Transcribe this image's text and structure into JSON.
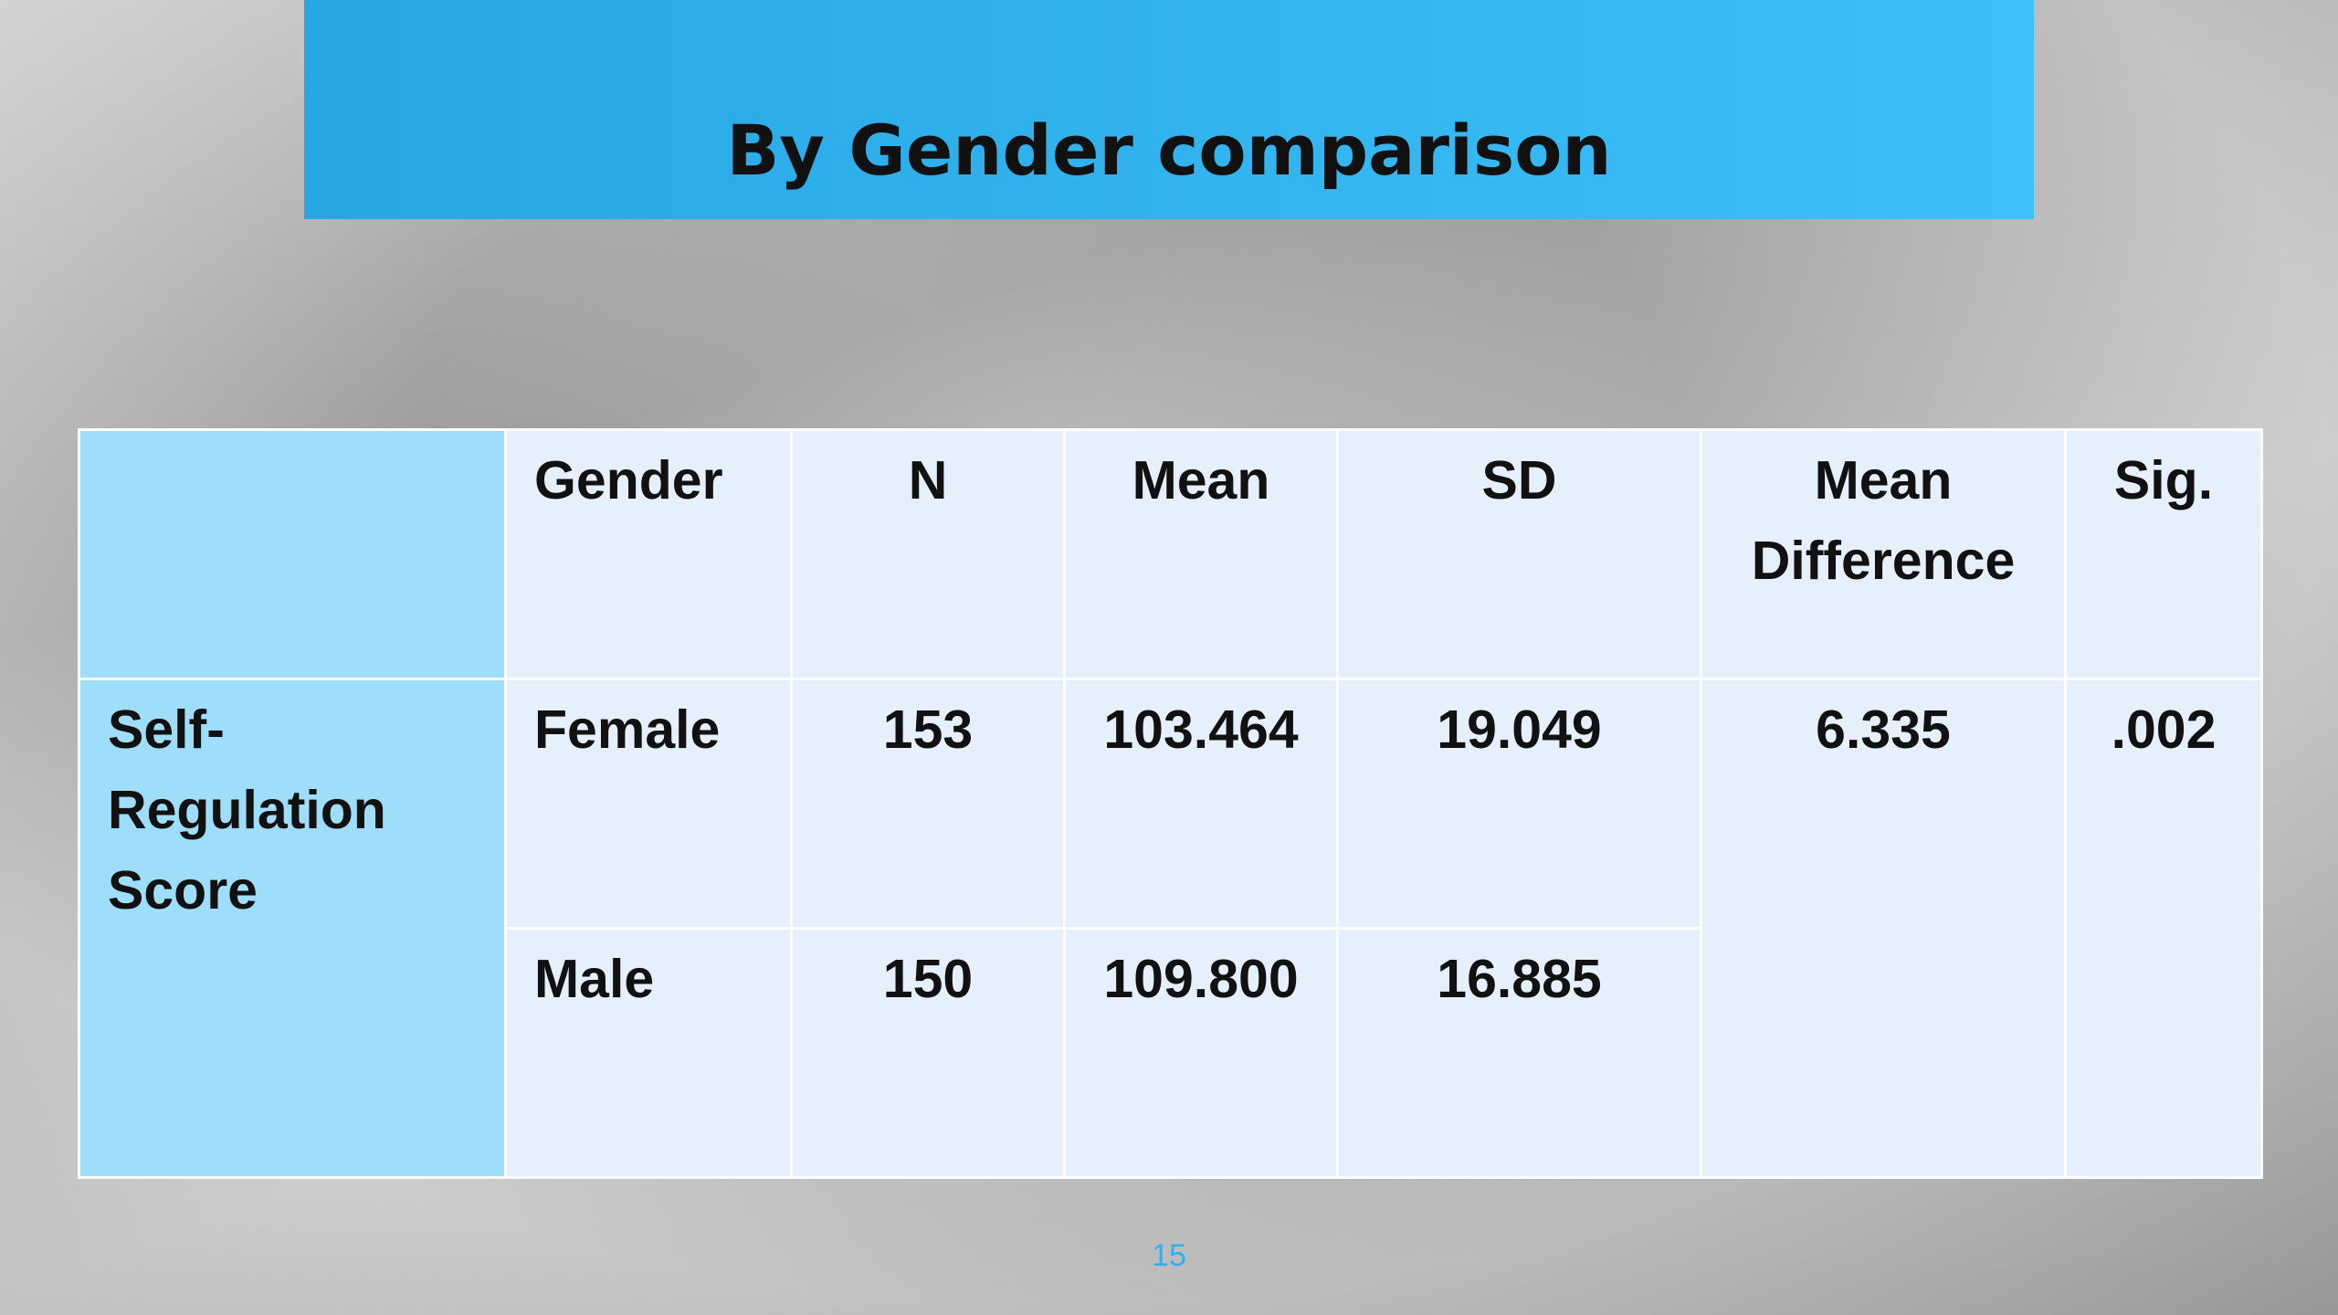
{
  "header": {
    "title": "By Gender comparison"
  },
  "table": {
    "columns": [
      "Gender",
      "N",
      "Mean",
      "SD",
      "Mean Difference",
      "Sig."
    ],
    "row_label": "Self-Regulation Score",
    "rows": [
      [
        "Female",
        "153",
        "103.464",
        "19.049"
      ],
      [
        "Male",
        "150",
        "109.800",
        "16.885"
      ]
    ],
    "mean_difference": "6.335",
    "sig": ".002"
  },
  "footer": {
    "page_number": "15"
  }
}
